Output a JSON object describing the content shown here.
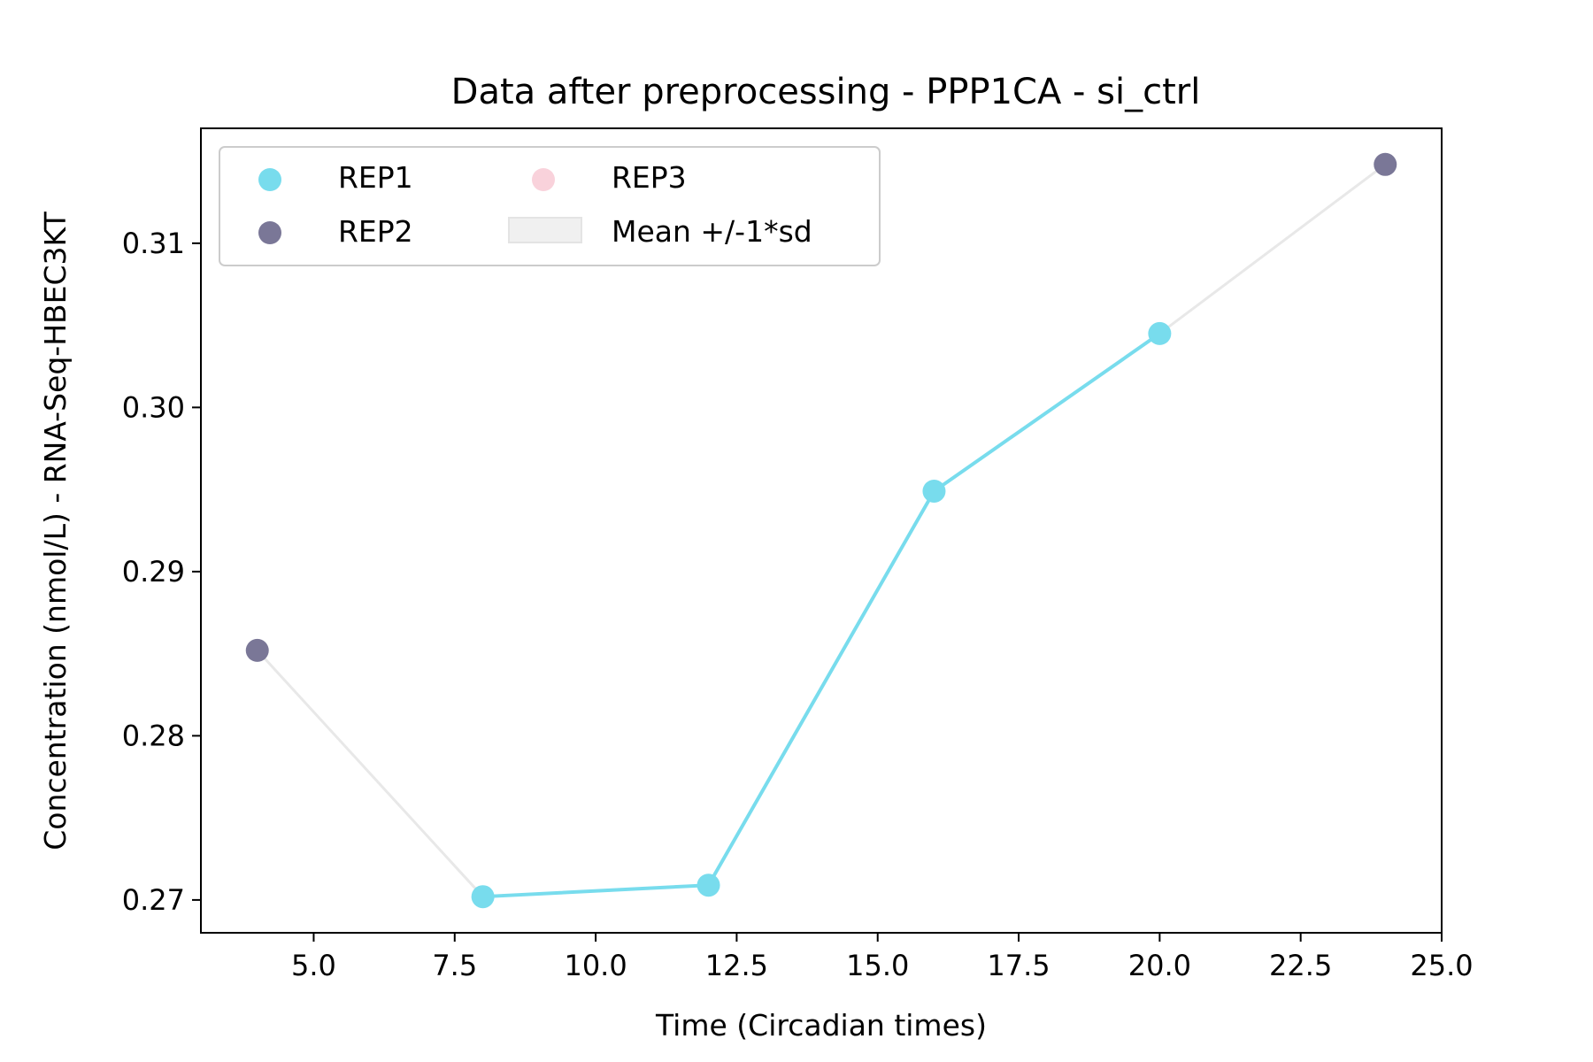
{
  "chart_data": {
    "type": "line",
    "title": "Data after preprocessing - PPP1CA - si_ctrl",
    "xlabel": "Time (Circadian times)",
    "ylabel": "Concentration (nmol/L) - RNA-Seq-HBEC3KT",
    "xlim": [
      3.0,
      25.0
    ],
    "ylim": [
      0.268,
      0.317
    ],
    "xticks": [
      5.0,
      7.5,
      10.0,
      12.5,
      15.0,
      17.5,
      20.0,
      22.5,
      25.0
    ],
    "xtick_labels": [
      "5.0",
      "7.5",
      "10.0",
      "12.5",
      "15.0",
      "17.5",
      "20.0",
      "22.5",
      "25.0"
    ],
    "yticks": [
      0.27,
      0.28,
      0.29,
      0.3,
      0.31
    ],
    "ytick_labels": [
      "0.27",
      "0.28",
      "0.29",
      "0.30",
      "0.31"
    ],
    "grid": false,
    "legend_position": "top-left",
    "legend_columns": 2,
    "mean_line": {
      "name": "Mean +/-1*sd",
      "color": "#e8e8e8",
      "points": [
        [
          4,
          0.2852
        ],
        [
          8,
          0.2702
        ],
        [
          12,
          0.2709
        ],
        [
          16,
          0.2949
        ],
        [
          20,
          0.3045
        ],
        [
          24,
          0.3148
        ]
      ]
    },
    "rep1_line": {
      "color": "#78dced",
      "points": [
        [
          8,
          0.2702
        ],
        [
          12,
          0.2709
        ],
        [
          16,
          0.2949
        ],
        [
          20,
          0.3045
        ]
      ]
    },
    "series": [
      {
        "name": "REP1",
        "color": "#78dced",
        "x": [
          8,
          12,
          16,
          20
        ],
        "y": [
          0.2702,
          0.2709,
          0.2949,
          0.3045
        ]
      },
      {
        "name": "REP2",
        "color": "#7a7797",
        "x": [
          4,
          24
        ],
        "y": [
          0.2852,
          0.3148
        ]
      },
      {
        "name": "REP3",
        "color": "#f9d2db",
        "x": [],
        "y": []
      }
    ]
  }
}
